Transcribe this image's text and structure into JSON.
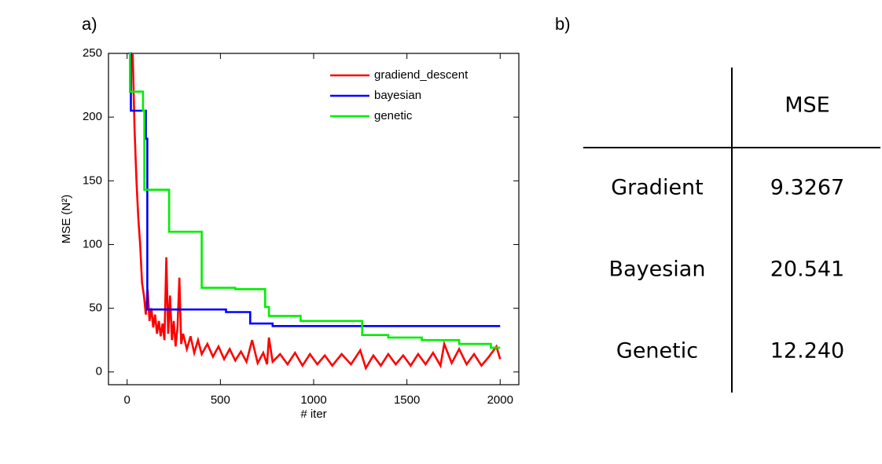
{
  "labels": {
    "a": "a)",
    "b": "b)"
  },
  "chart_data": {
    "type": "line",
    "x_label": "# iter",
    "y_label": "MSE  (N²)",
    "xlim": [
      -100,
      2100
    ],
    "ylim": [
      -10,
      250
    ],
    "xticks": [
      0,
      500,
      1000,
      1500,
      2000
    ],
    "yticks": [
      0,
      50,
      100,
      150,
      200,
      250
    ],
    "legend": "upper right",
    "series": [
      {
        "name": "gradiend_descent",
        "color": "#ff0000",
        "x": [
          30,
          40,
          50,
          60,
          70,
          80,
          90,
          100,
          110,
          120,
          130,
          140,
          150,
          160,
          170,
          180,
          190,
          200,
          210,
          220,
          230,
          240,
          250,
          260,
          270,
          280,
          290,
          300,
          320,
          340,
          360,
          380,
          400,
          430,
          460,
          490,
          520,
          550,
          580,
          610,
          640,
          670,
          700,
          730,
          750,
          760,
          780,
          820,
          860,
          900,
          940,
          980,
          1020,
          1060,
          1100,
          1150,
          1200,
          1250,
          1280,
          1320,
          1360,
          1400,
          1440,
          1480,
          1520,
          1560,
          1600,
          1640,
          1680,
          1700,
          1740,
          1780,
          1820,
          1860,
          1900,
          1940,
          1980,
          2000
        ],
        "values": [
          250,
          190,
          150,
          120,
          100,
          70,
          60,
          45,
          65,
          40,
          50,
          35,
          45,
          30,
          40,
          28,
          38,
          25,
          90,
          30,
          60,
          25,
          40,
          20,
          35,
          74,
          22,
          30,
          18,
          28,
          15,
          25,
          14,
          22,
          12,
          20,
          10,
          18,
          9,
          16,
          8,
          25,
          7,
          15,
          6,
          27,
          8,
          14,
          6,
          15,
          5,
          14,
          6,
          13,
          5,
          14,
          6,
          17,
          3,
          13,
          5,
          14,
          6,
          13,
          5,
          14,
          6,
          15,
          5,
          22,
          7,
          18,
          6,
          14,
          5,
          12,
          20,
          10
        ]
      },
      {
        "name": "bayesian",
        "color": "#0000ff",
        "x": [
          8,
          20,
          20,
          100,
          100,
          108,
          108,
          530,
          530,
          660,
          660,
          780,
          780,
          2000
        ],
        "values": [
          250,
          250,
          205,
          205,
          183,
          183,
          49,
          49,
          47,
          47,
          38,
          38,
          36,
          36
        ]
      },
      {
        "name": "genetic",
        "color": "#00ee00",
        "x": [
          10,
          15,
          15,
          85,
          85,
          92,
          92,
          225,
          225,
          400,
          400,
          580,
          580,
          740,
          740,
          760,
          760,
          930,
          930,
          1260,
          1260,
          1400,
          1400,
          1580,
          1580,
          1780,
          1780,
          1950,
          1950,
          2000
        ],
        "values": [
          250,
          250,
          220,
          220,
          205,
          205,
          143,
          143,
          110,
          110,
          66,
          66,
          65,
          65,
          51,
          51,
          44,
          44,
          40,
          40,
          29,
          29,
          27,
          27,
          25,
          25,
          22,
          22,
          19,
          19
        ]
      }
    ]
  },
  "table": {
    "column": "MSE",
    "rows": [
      [
        "Gradient",
        "9.3267"
      ],
      [
        "Bayesian",
        "20.541"
      ],
      [
        "Genetic",
        "12.240"
      ]
    ]
  }
}
